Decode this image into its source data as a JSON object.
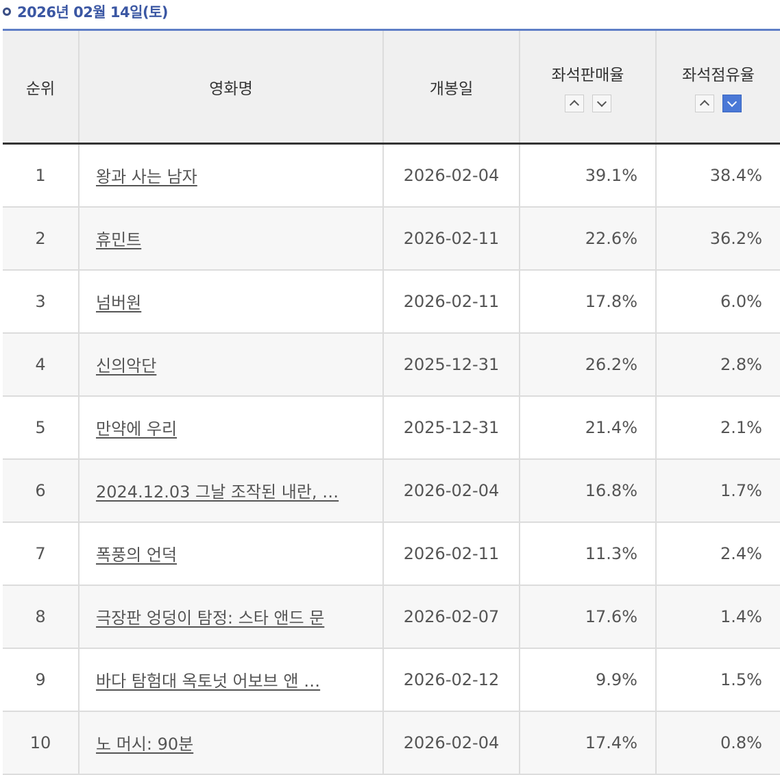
{
  "header": {
    "date_title": "2026년 02월 14일(토)"
  },
  "columns": {
    "rank": "순위",
    "title": "영화명",
    "release": "개봉일",
    "seat_sales": "좌석판매율",
    "seat_share": "좌석점유율"
  },
  "sort": {
    "seat_sales_active": "none",
    "seat_share_active": "desc",
    "active_color": "#4a78d6"
  },
  "icons": {
    "bullet": "ring-bullet-icon",
    "sort_up": "chevron-up-icon",
    "sort_down": "chevron-down-icon"
  },
  "rows": [
    {
      "rank": "1",
      "title": "왕과 사는 남자",
      "release": "2026-02-04",
      "seat_sales": "39.1%",
      "seat_share": "38.4%"
    },
    {
      "rank": "2",
      "title": "휴민트",
      "release": "2026-02-11",
      "seat_sales": "22.6%",
      "seat_share": "36.2%"
    },
    {
      "rank": "3",
      "title": "넘버원",
      "release": "2026-02-11",
      "seat_sales": "17.8%",
      "seat_share": "6.0%"
    },
    {
      "rank": "4",
      "title": "신의악단",
      "release": "2025-12-31",
      "seat_sales": "26.2%",
      "seat_share": "2.8%"
    },
    {
      "rank": "5",
      "title": "만약에 우리",
      "release": "2025-12-31",
      "seat_sales": "21.4%",
      "seat_share": "2.1%"
    },
    {
      "rank": "6",
      "title": "2024.12.03 그날 조작된 내란, …",
      "release": "2026-02-04",
      "seat_sales": "16.8%",
      "seat_share": "1.7%"
    },
    {
      "rank": "7",
      "title": "폭풍의 언덕",
      "release": "2026-02-11",
      "seat_sales": "11.3%",
      "seat_share": "2.4%"
    },
    {
      "rank": "8",
      "title": "극장판 엉덩이 탐정: 스타 앤드 문",
      "release": "2026-02-07",
      "seat_sales": "17.6%",
      "seat_share": "1.4%"
    },
    {
      "rank": "9",
      "title": "바다 탐험대 옥토넛 어보브 앤 …",
      "release": "2026-02-12",
      "seat_sales": "9.9%",
      "seat_share": "1.5%"
    },
    {
      "rank": "10",
      "title": "노 머시: 90분",
      "release": "2026-02-04",
      "seat_sales": "17.4%",
      "seat_share": "0.8%"
    }
  ]
}
